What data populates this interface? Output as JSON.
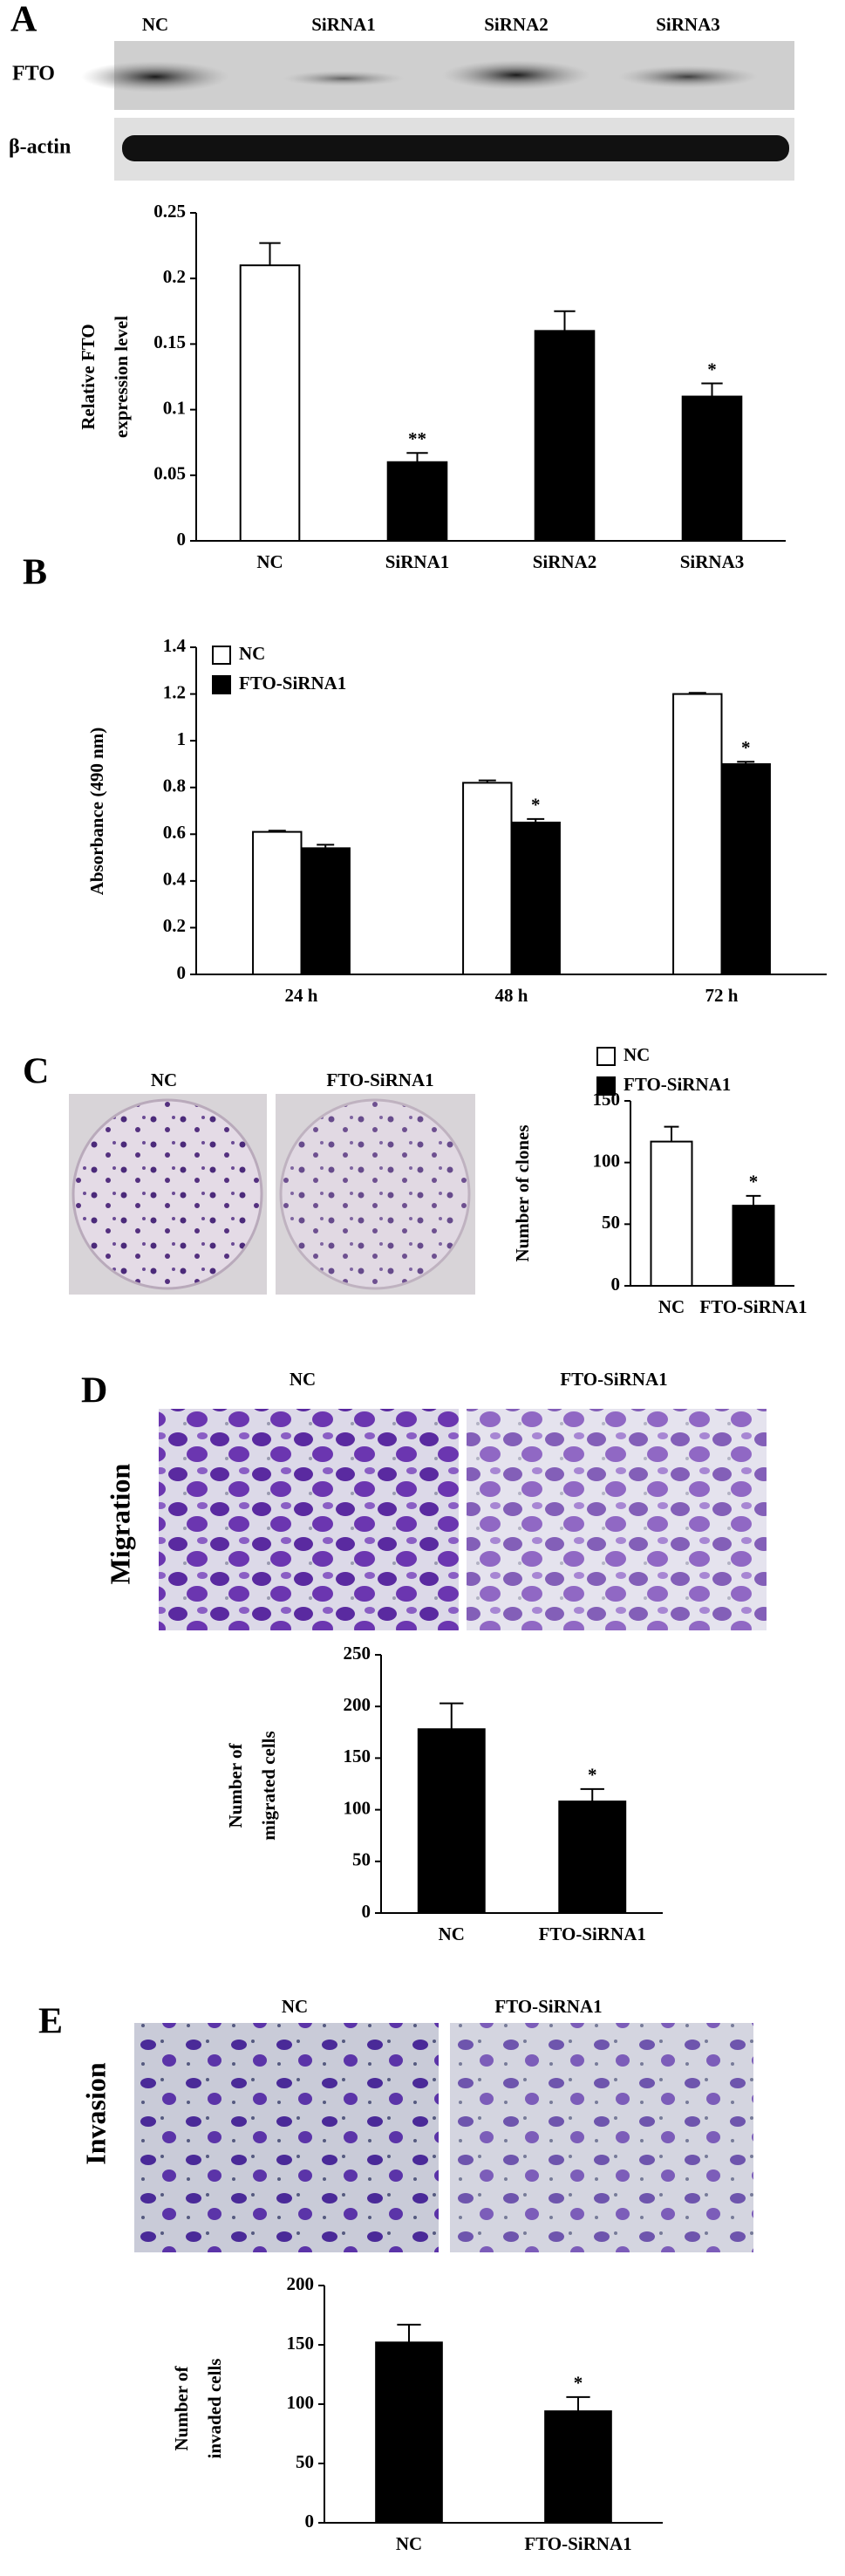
{
  "chart_data": [
    {
      "type": "bar",
      "ylabel": [
        "Relative FTO",
        "expression level"
      ],
      "categories": [
        "NC",
        "SiRNA1",
        "SiRNA2",
        "SiRNA3"
      ],
      "values": [
        0.21,
        0.06,
        0.16,
        0.11
      ],
      "errors": [
        0.017,
        0.007,
        0.015,
        0.01
      ],
      "colors": [
        "#ffffff",
        "#000000",
        "#000000",
        "#000000"
      ],
      "ylim": [
        0,
        0.25
      ],
      "yticks": [
        0,
        0.05,
        0.1,
        0.15,
        0.2,
        0.25
      ],
      "annotations": [
        {
          "text": "**",
          "category": "SiRNA1"
        },
        {
          "text": "*",
          "category": "SiRNA3"
        }
      ]
    },
    {
      "type": "bar",
      "ylabel": [
        "Absorbance (490 nm)"
      ],
      "categories": [
        "24 h",
        "48 h",
        "72 h"
      ],
      "series": [
        {
          "name": "NC",
          "color": "#ffffff",
          "values": [
            0.61,
            0.82,
            1.2
          ],
          "errors": [
            0.005,
            0.01,
            0.005
          ]
        },
        {
          "name": "FTO-SiRNA1",
          "color": "#000000",
          "values": [
            0.54,
            0.65,
            0.9
          ],
          "errors": [
            0.015,
            0.015,
            0.01
          ]
        }
      ],
      "ylim": [
        0,
        1.4
      ],
      "yticks": [
        0,
        0.2,
        0.4,
        0.6,
        0.8,
        1,
        1.2,
        1.4
      ],
      "legend": "top-left",
      "annotations": [
        {
          "text": "*",
          "category": "48 h",
          "series": "FTO-SiRNA1"
        },
        {
          "text": "*",
          "category": "72 h",
          "series": "FTO-SiRNA1"
        }
      ]
    },
    {
      "type": "bar",
      "ylabel": [
        "Number of clones"
      ],
      "categories": [
        "NC",
        "FTO-SiRNA1"
      ],
      "values": [
        117,
        65
      ],
      "errors": [
        12,
        8
      ],
      "colors": [
        "#ffffff",
        "#000000"
      ],
      "legend": "top-left",
      "ylim": [
        0,
        150
      ],
      "yticks": [
        0,
        50,
        100,
        150
      ],
      "annotations": [
        {
          "text": "*",
          "category": "FTO-SiRNA1"
        }
      ]
    },
    {
      "type": "bar",
      "ylabel": [
        "Number of",
        "migrated cells"
      ],
      "categories": [
        "NC",
        "FTO-SiRNA1"
      ],
      "values": [
        178,
        108
      ],
      "errors": [
        25,
        12
      ],
      "colors": [
        "#000000",
        "#000000"
      ],
      "ylim": [
        0,
        250
      ],
      "yticks": [
        0,
        50,
        100,
        150,
        200,
        250
      ],
      "annotations": [
        {
          "text": "*",
          "category": "FTO-SiRNA1"
        }
      ]
    },
    {
      "type": "bar",
      "ylabel": [
        "Number of",
        "invaded cells"
      ],
      "categories": [
        "NC",
        "FTO-SiRNA1"
      ],
      "values": [
        152,
        94
      ],
      "errors": [
        15,
        12
      ],
      "colors": [
        "#000000",
        "#000000"
      ],
      "ylim": [
        0,
        200
      ],
      "yticks": [
        0,
        50,
        100,
        150,
        200
      ],
      "annotations": [
        {
          "text": "*",
          "category": "FTO-SiRNA1"
        }
      ]
    }
  ],
  "panels": [
    {
      "letter": "A",
      "blot_lanes": [
        "NC",
        "SiRNA1",
        "SiRNA2",
        "SiRNA3"
      ],
      "blot_rows": [
        "FTO",
        "β-actin"
      ]
    },
    {
      "letter": "B"
    },
    {
      "letter": "C",
      "image_labels": [
        "NC",
        "FTO-SiRNA1"
      ]
    },
    {
      "letter": "D",
      "side_label": "Migration",
      "image_labels": [
        "NC",
        "FTO-SiRNA1"
      ]
    },
    {
      "letter": "E",
      "side_label": "Invasion",
      "image_labels": [
        "NC",
        "FTO-SiRNA1"
      ]
    }
  ]
}
